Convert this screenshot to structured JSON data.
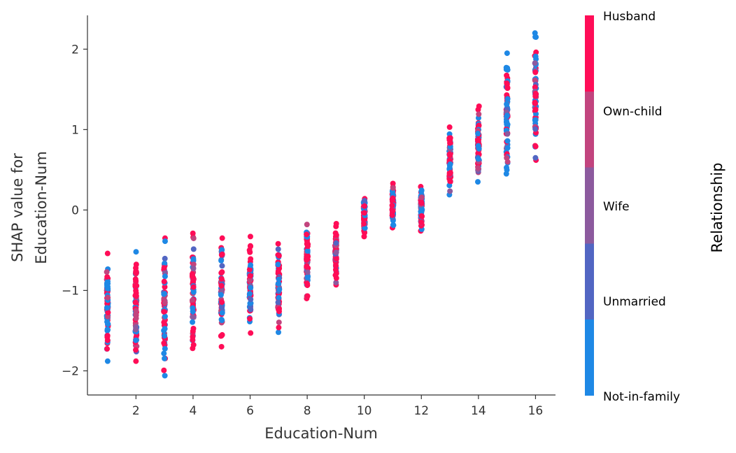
{
  "chart_data": {
    "type": "scatter",
    "xlabel": "Education-Num",
    "ylabel_lines": [
      "SHAP value for",
      "Education-Num"
    ],
    "xlim": [
      0.3,
      16.7
    ],
    "ylim": [
      -2.3,
      2.42
    ],
    "xticks": [
      2,
      4,
      6,
      8,
      10,
      12,
      14,
      16
    ],
    "yticks": [
      -2,
      -1,
      0,
      1,
      2
    ],
    "grid": false,
    "colorbar": {
      "title": "Relationship",
      "position": "right",
      "categories": [
        "Not-in-family",
        "Unmarried",
        "Wife",
        "Own-child",
        "Husband"
      ],
      "colors": [
        "#1e88e5",
        "#5266c3",
        "#8c5a9e",
        "#c2447e",
        "#ff0d57"
      ]
    },
    "columns": [
      {
        "x": 1,
        "ymin": -1.88,
        "ymax": -0.54,
        "mix": [
          0.5,
          0.05,
          0.05,
          0.1,
          0.3
        ]
      },
      {
        "x": 2,
        "ymin": -1.88,
        "ymax": -0.52,
        "mix": [
          0.25,
          0.05,
          0.05,
          0.15,
          0.5
        ]
      },
      {
        "x": 3,
        "ymin": -2.06,
        "ymax": -0.35,
        "mix": [
          0.3,
          0.05,
          0.05,
          0.15,
          0.45
        ]
      },
      {
        "x": 4,
        "ymin": -1.72,
        "ymax": -0.29,
        "mix": [
          0.3,
          0.05,
          0.05,
          0.15,
          0.45
        ]
      },
      {
        "x": 5,
        "ymin": -1.7,
        "ymax": -0.35,
        "mix": [
          0.35,
          0.05,
          0.05,
          0.1,
          0.45
        ]
      },
      {
        "x": 6,
        "ymin": -1.53,
        "ymax": -0.33,
        "mix": [
          0.35,
          0.05,
          0.05,
          0.1,
          0.45
        ]
      },
      {
        "x": 7,
        "ymin": -1.52,
        "ymax": -0.42,
        "mix": [
          0.3,
          0.05,
          0.05,
          0.1,
          0.5
        ]
      },
      {
        "x": 8,
        "ymin": -1.1,
        "ymax": -0.18,
        "mix": [
          0.3,
          0.05,
          0.05,
          0.15,
          0.45
        ]
      },
      {
        "x": 9,
        "ymin": -0.93,
        "ymax": -0.17,
        "mix": [
          0.1,
          0.05,
          0.05,
          0.2,
          0.6
        ]
      },
      {
        "x": 10,
        "ymin": -0.33,
        "ymax": 0.14,
        "mix": [
          0.35,
          0.05,
          0.05,
          0.1,
          0.45
        ]
      },
      {
        "x": 11,
        "ymin": -0.22,
        "ymax": 0.33,
        "mix": [
          0.3,
          0.05,
          0.05,
          0.15,
          0.45
        ]
      },
      {
        "x": 12,
        "ymin": -0.26,
        "ymax": 0.29,
        "mix": [
          0.35,
          0.05,
          0.05,
          0.1,
          0.45
        ]
      },
      {
        "x": 13,
        "ymin": 0.19,
        "ymax": 1.03,
        "mix": [
          0.35,
          0.05,
          0.05,
          0.1,
          0.45
        ]
      },
      {
        "x": 14,
        "ymin": 0.35,
        "ymax": 1.29,
        "mix": [
          0.35,
          0.05,
          0.05,
          0.1,
          0.45
        ]
      },
      {
        "x": 15,
        "ymin": 0.45,
        "ymax": 1.95,
        "mix": [
          0.4,
          0.05,
          0.05,
          0.1,
          0.4
        ]
      },
      {
        "x": 16,
        "ymin": 0.62,
        "ymax": 2.2,
        "mix": [
          0.4,
          0.05,
          0.05,
          0.1,
          0.4
        ]
      }
    ]
  }
}
